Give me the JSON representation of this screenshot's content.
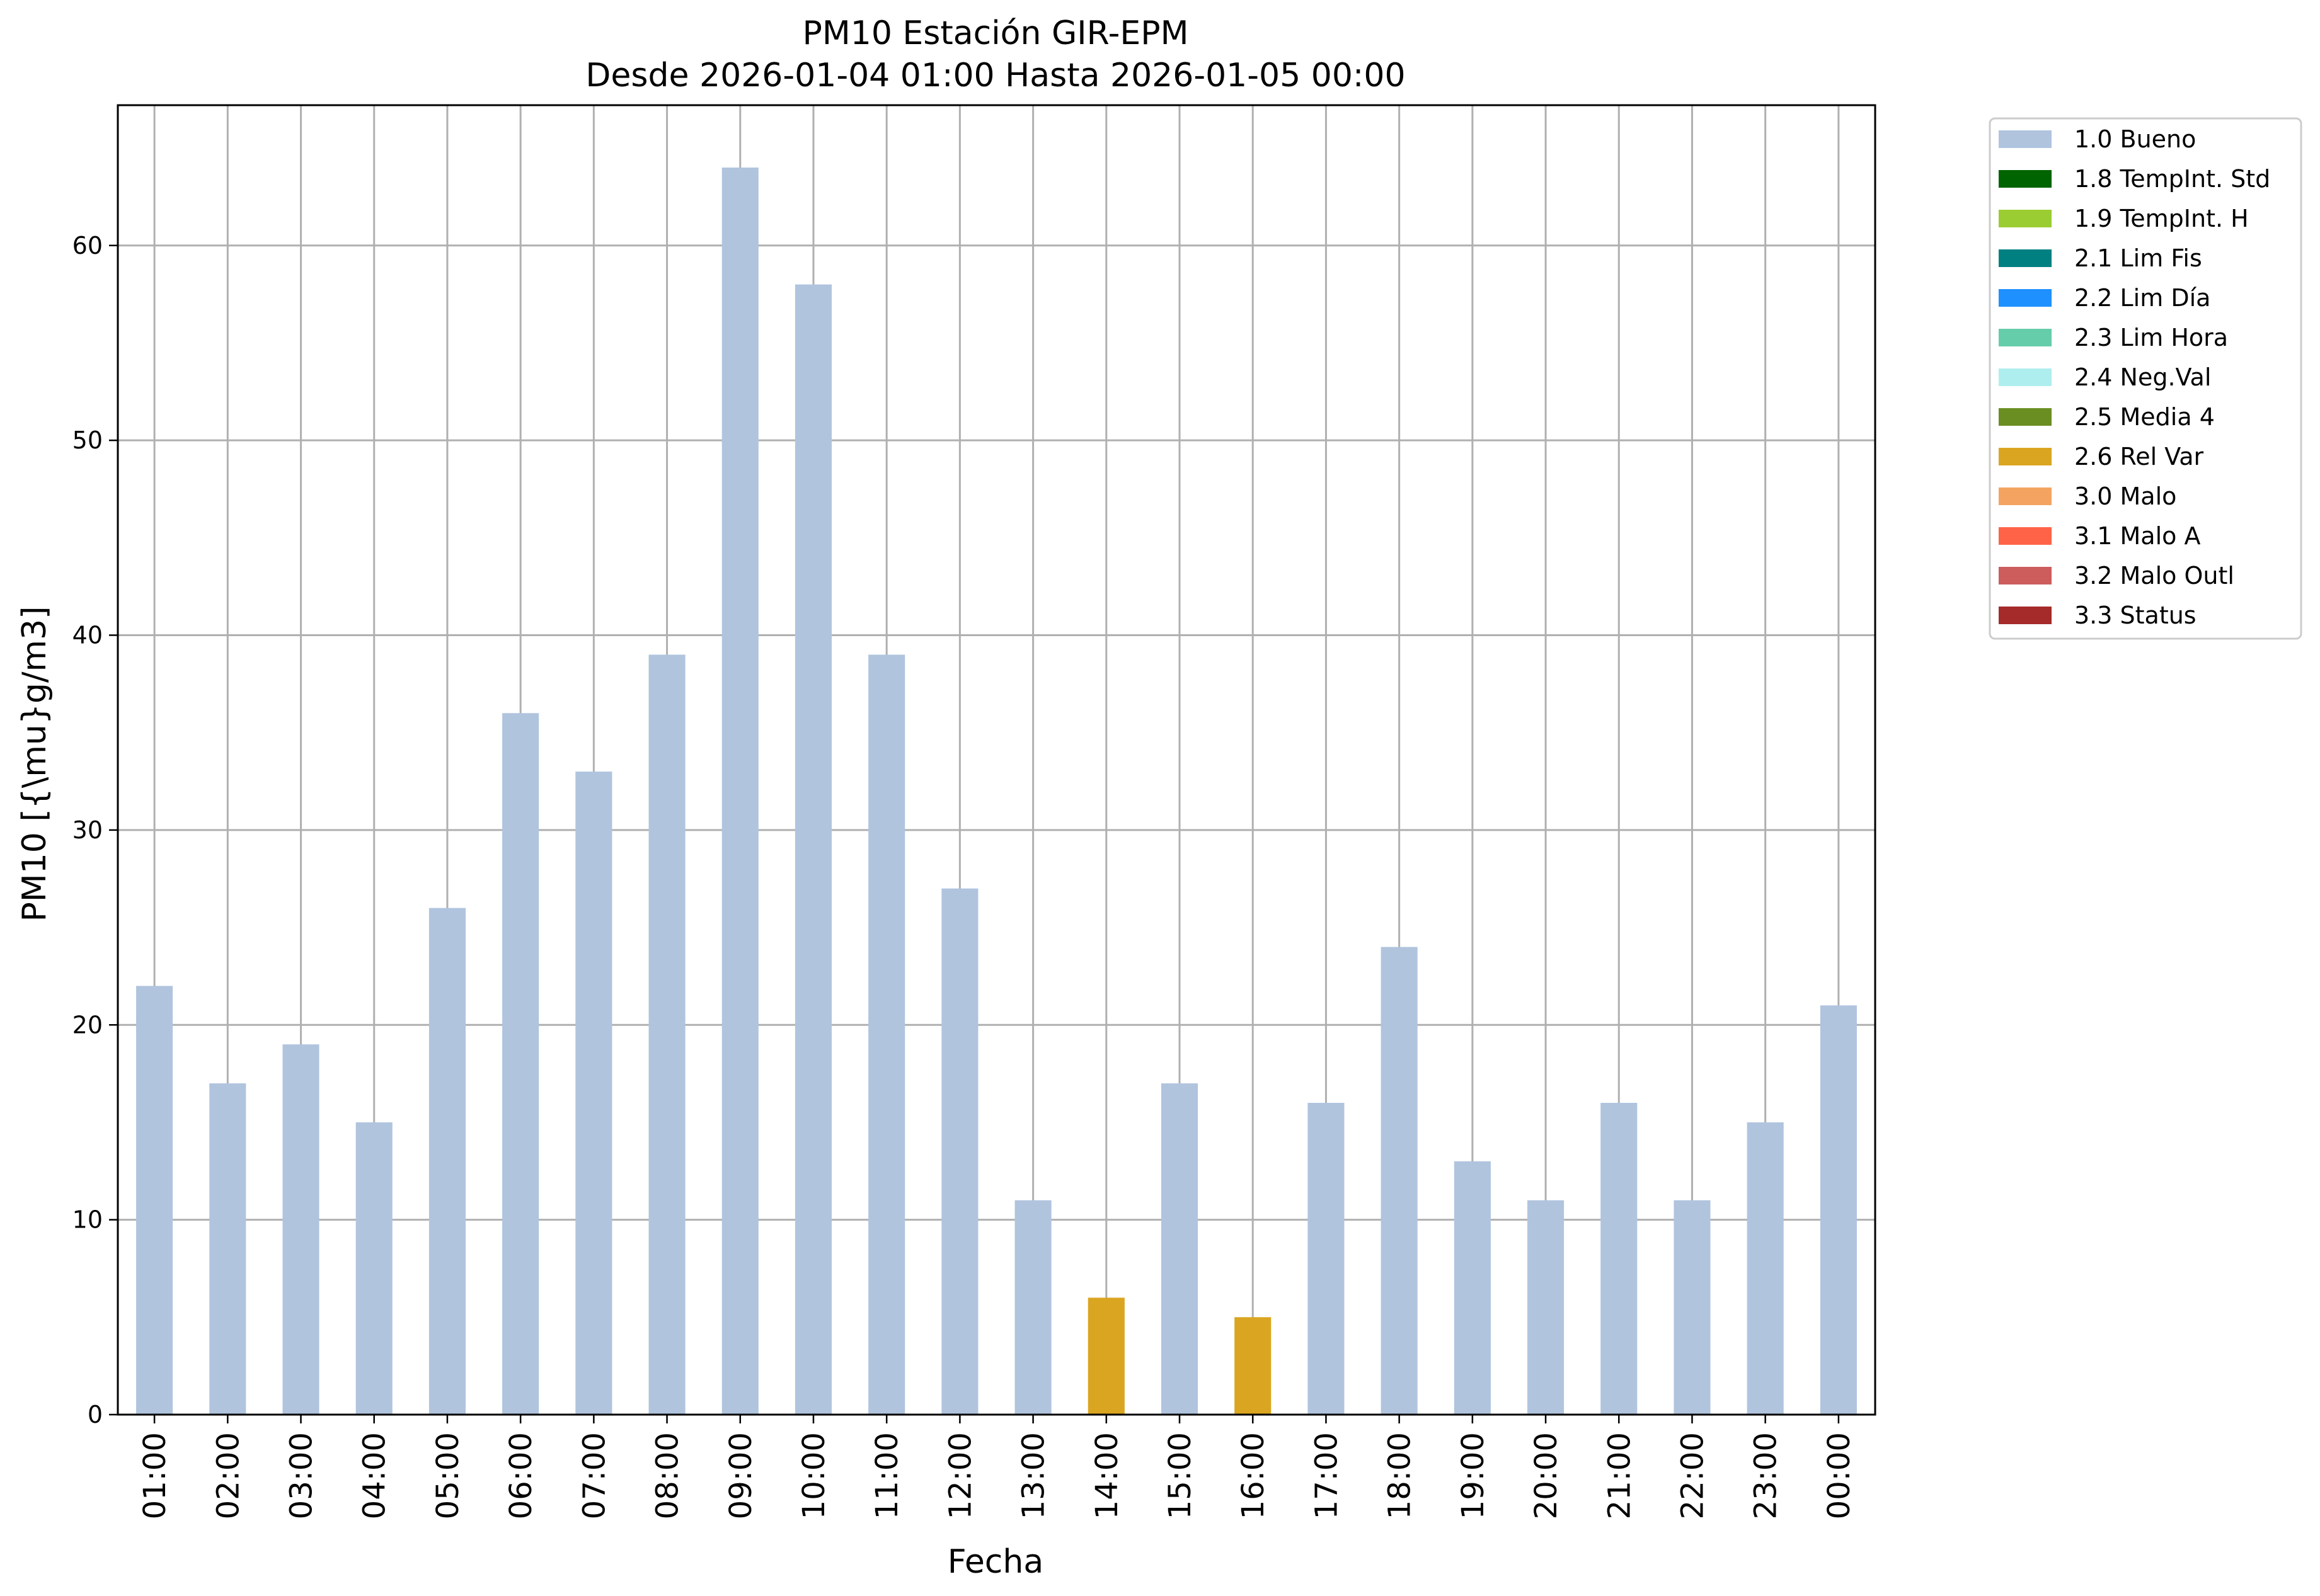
{
  "chart_data": {
    "type": "bar",
    "title": [
      "PM10 Estación GIR-EPM",
      "Desde 2026-01-04 01:00 Hasta 2026-01-05 00:00"
    ],
    "xlabel": "Fecha",
    "ylabel": "PM10 [{\\mu}g/m3]",
    "ylim": [
      0,
      67.2
    ],
    "yticks": [
      0,
      10,
      20,
      30,
      40,
      50,
      60
    ],
    "grid": true,
    "legend_position": "outside-top-right",
    "categories": [
      "01:00",
      "02:00",
      "03:00",
      "04:00",
      "05:00",
      "06:00",
      "07:00",
      "08:00",
      "09:00",
      "10:00",
      "11:00",
      "12:00",
      "13:00",
      "14:00",
      "15:00",
      "16:00",
      "17:00",
      "18:00",
      "19:00",
      "20:00",
      "21:00",
      "22:00",
      "23:00",
      "00:00"
    ],
    "values": [
      22,
      17,
      19,
      15,
      26,
      36,
      33,
      39,
      64,
      58,
      39,
      27,
      11,
      6,
      17,
      5,
      16,
      24,
      13,
      11,
      16,
      11,
      15,
      21
    ],
    "flags": [
      "1.0 Bueno",
      "1.0 Bueno",
      "1.0 Bueno",
      "1.0 Bueno",
      "1.0 Bueno",
      "1.0 Bueno",
      "1.0 Bueno",
      "1.0 Bueno",
      "1.0 Bueno",
      "1.0 Bueno",
      "1.0 Bueno",
      "1.0 Bueno",
      "1.0 Bueno",
      "2.6 Rel Var",
      "1.0 Bueno",
      "2.6 Rel Var",
      "1.0 Bueno",
      "1.0 Bueno",
      "1.0 Bueno",
      "1.0 Bueno",
      "1.0 Bueno",
      "1.0 Bueno",
      "1.0 Bueno",
      "1.0 Bueno"
    ],
    "legend": [
      {
        "name": "1.0 Bueno",
        "color": "#b0c4de"
      },
      {
        "name": "1.8 TempInt. Std",
        "color": "#006400"
      },
      {
        "name": "1.9 TempInt. H",
        "color": "#9acd32"
      },
      {
        "name": "2.1 Lim Fis",
        "color": "#008080"
      },
      {
        "name": "2.2 Lim Día",
        "color": "#1e90ff"
      },
      {
        "name": "2.3 Lim Hora",
        "color": "#66cdaa"
      },
      {
        "name": "2.4 Neg.Val",
        "color": "#afeeee"
      },
      {
        "name": "2.5 Media 4",
        "color": "#6b8e23"
      },
      {
        "name": "2.6 Rel Var",
        "color": "#daa520"
      },
      {
        "name": "3.0 Malo",
        "color": "#f4a460"
      },
      {
        "name": "3.1 Malo A",
        "color": "#ff6347"
      },
      {
        "name": "3.2 Malo Outl",
        "color": "#cd5c5c"
      },
      {
        "name": "3.3 Status",
        "color": "#a52a2a"
      }
    ]
  }
}
